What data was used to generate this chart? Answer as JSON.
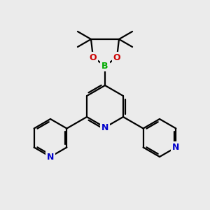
{
  "bg_color": "#ebebeb",
  "bond_color": "#000000",
  "N_color": "#0000cc",
  "O_color": "#cc0000",
  "B_color": "#00aa00",
  "line_width": 1.6,
  "fig_size": [
    3.0,
    3.0
  ],
  "dpi": 100,
  "xlim": [
    0,
    300
  ],
  "ylim": [
    0,
    300
  ]
}
